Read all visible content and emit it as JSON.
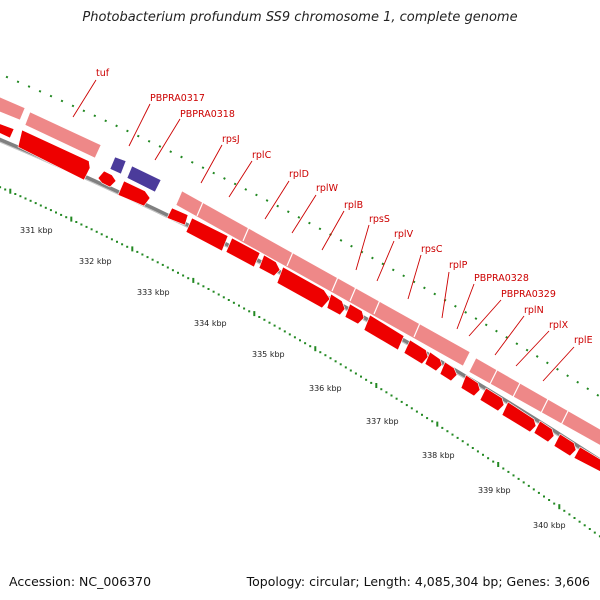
{
  "title": "Photobacterium profundum SS9 chromosome 1, complete genome",
  "footer": {
    "accession": "Accession: NC_006370",
    "topology": "Topology: circular; Length: 4,085,304 bp; Genes: 3,606"
  },
  "colors": {
    "cds": "#ee0000",
    "cds_light": "#ee8888",
    "other": "#4b3b9b",
    "backbone": "#808080",
    "tick": "#228822",
    "label": "#cc0000"
  },
  "kbp_labels": [
    "331 kbp",
    "332 kbp",
    "333 kbp",
    "334 kbp",
    "335 kbp",
    "336 kbp",
    "337 kbp",
    "338 kbp",
    "339 kbp",
    "340 kbp"
  ],
  "gene_labels": [
    "tuf",
    "PBPRA0317",
    "PBPRA0318",
    "rpsJ",
    "rplC",
    "rplD",
    "rplW",
    "rplB",
    "rpsS",
    "rplV",
    "rpsC",
    "rplP",
    "PBPRA0328",
    "PBPRA0329",
    "rplN",
    "rplX",
    "rplE"
  ]
}
